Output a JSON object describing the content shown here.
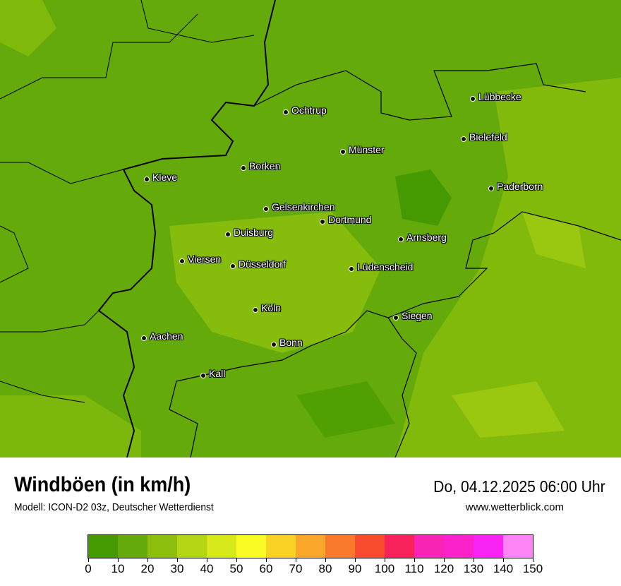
{
  "map": {
    "cities": [
      "Lübbecke",
      "Ochtrup",
      "Bielefeld",
      "Münster",
      "Borken",
      "Kleve",
      "Paderborn",
      "Gelsenkirchen",
      "Dortmund",
      "Duisburg",
      "Arnsberg",
      "Viersen",
      "Düsseldorf",
      "Lüdenscheid",
      "Köln",
      "Siegen",
      "Aachen",
      "Bonn",
      "Kall"
    ]
  },
  "footer": {
    "title": "Windböen (in km/h)",
    "model": "Modell: ICON-D2 03z, Deutscher Wetterdienst",
    "datetime": "Do, 04.12.2025 06:00 Uhr",
    "website": "www.wetterblick.com"
  },
  "legend": {
    "ticks": [
      "0",
      "10",
      "20",
      "30",
      "40",
      "50",
      "60",
      "70",
      "80",
      "90",
      "100",
      "110",
      "120",
      "130",
      "140",
      "150"
    ],
    "colors": [
      "#449a00",
      "#63aa0a",
      "#8cbf0d",
      "#b2d614",
      "#d6e81a",
      "#fafa24",
      "#fad224",
      "#f9a62a",
      "#f97a2a",
      "#f94c2e",
      "#f7225a",
      "#f724b4",
      "#fb22cc",
      "#f922f5",
      "#fc84f5"
    ]
  }
}
